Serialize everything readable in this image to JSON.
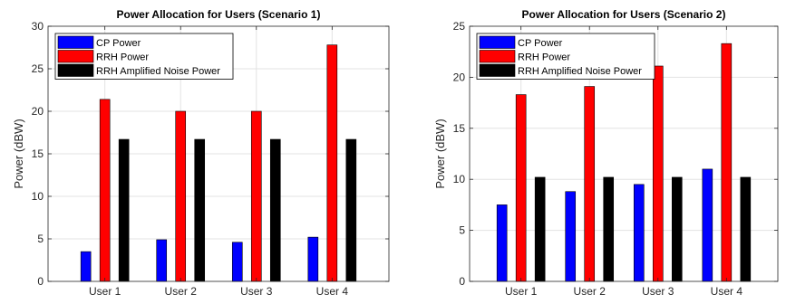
{
  "colors": {
    "cp": "#0000ff",
    "rrh": "#ff0000",
    "noise": "#000000",
    "grid": "#e3e3e3",
    "axis": "#262626"
  },
  "chart_data": [
    {
      "type": "bar",
      "title": "Power Allocation for Users (Scenario 1)",
      "xlabel": "",
      "ylabel": "Power (dBW)",
      "categories": [
        "User 1",
        "User 2",
        "User 3",
        "User 4"
      ],
      "ylim": [
        0,
        30
      ],
      "yticks": [
        0,
        5,
        10,
        15,
        20,
        25,
        30
      ],
      "grid": true,
      "legend_position": "top-left",
      "series": [
        {
          "name": "CP Power",
          "color": "#0000ff",
          "values": [
            3.5,
            4.9,
            4.6,
            5.2
          ]
        },
        {
          "name": "RRH Power",
          "color": "#ff0000",
          "values": [
            21.4,
            20.0,
            20.0,
            27.8
          ]
        },
        {
          "name": "RRH Amplified Noise Power",
          "color": "#000000",
          "values": [
            16.7,
            16.7,
            16.7,
            16.7
          ]
        }
      ]
    },
    {
      "type": "bar",
      "title": "Power Allocation for Users (Scenario 2)",
      "xlabel": "",
      "ylabel": "Power (dBW)",
      "categories": [
        "User 1",
        "User 2",
        "User 3",
        "User 4"
      ],
      "ylim": [
        0,
        25
      ],
      "yticks": [
        0,
        5,
        10,
        15,
        20,
        25
      ],
      "grid": true,
      "legend_position": "top-left",
      "series": [
        {
          "name": "CP Power",
          "color": "#0000ff",
          "values": [
            7.5,
            8.8,
            9.5,
            11.0
          ]
        },
        {
          "name": "RRH Power",
          "color": "#ff0000",
          "values": [
            18.3,
            19.1,
            21.1,
            23.3
          ]
        },
        {
          "name": "RRH Amplified Noise Power",
          "color": "#000000",
          "values": [
            10.2,
            10.2,
            10.2,
            10.2
          ]
        }
      ]
    }
  ]
}
